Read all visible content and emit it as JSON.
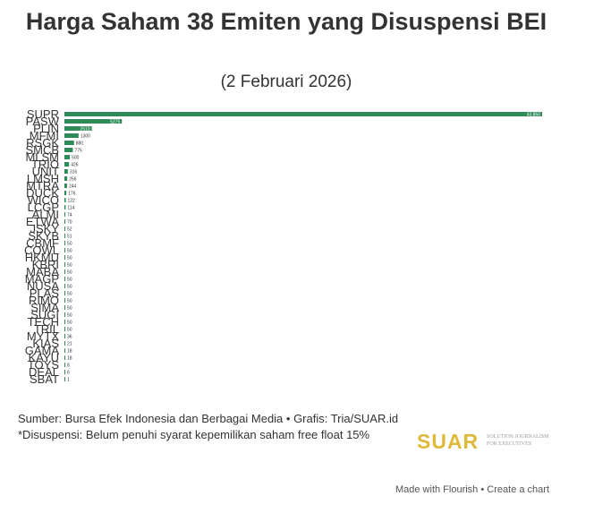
{
  "header": {
    "title": "Harga Saham 38 Emiten yang Disuspensi BEI",
    "subtitle": "(2 Februari 2026)"
  },
  "chart_data": {
    "type": "bar",
    "orientation": "horizontal",
    "bar_color": "#2e8b57",
    "categories": [
      "SUPR",
      "PASW",
      "PLIN",
      "MFMI",
      "RSGK",
      "SMCB",
      "MLSM",
      "TRIO",
      "UNIT",
      "LMSH",
      "MTRA",
      "DUCK",
      "WICO",
      "LCGP",
      "ALMI",
      "ETWA",
      "JSKY",
      "SKYB",
      "CBMF",
      "COWL",
      "HKMU",
      "KBRI",
      "MABA",
      "MAGP",
      "NUSA",
      "PLAS",
      "RIMO",
      "SIMA",
      "SUGI",
      "TECH",
      "TRIL",
      "MYTX",
      "KIAS",
      "GAMA",
      "KAYU",
      "TOYS",
      "DEAL",
      "SBAT"
    ],
    "values": [
      43850,
      5275,
      2510,
      1300,
      880,
      775,
      500,
      426,
      316,
      256,
      244,
      176,
      122,
      114,
      74,
      70,
      52,
      51,
      50,
      50,
      50,
      50,
      50,
      50,
      50,
      50,
      50,
      50,
      50,
      50,
      50,
      36,
      21,
      18,
      18,
      8,
      6,
      1
    ],
    "value_labels": [
      "43.850",
      "5275",
      "2510",
      "1300",
      "880",
      "775",
      "500",
      "426",
      "316",
      "256",
      "244",
      "176",
      "122",
      "114",
      "74",
      "70",
      "52",
      "51",
      "50",
      "50",
      "50",
      "50",
      "50",
      "50",
      "50",
      "50",
      "50",
      "50",
      "50",
      "50",
      "50",
      "36",
      "21",
      "18",
      "18",
      "8",
      "6",
      "1"
    ],
    "xlim": [
      0,
      43850
    ]
  },
  "notes": {
    "source": "Sumber: Bursa Efek Indonesia dan Berbagai Media • Grafis: Tria/SUAR.id",
    "footnote": "*Disuspensi: Belum penuhi syarat kepemilikan saham free float 15%"
  },
  "logo": {
    "name": "SUAR",
    "tagline": "SOLUTION JOURNALISM FOR EXECUTIVES",
    "color": "#e0b93a"
  },
  "footer": {
    "made_with": "Made with Flourish",
    "separator": "•",
    "create": "Create a chart"
  }
}
